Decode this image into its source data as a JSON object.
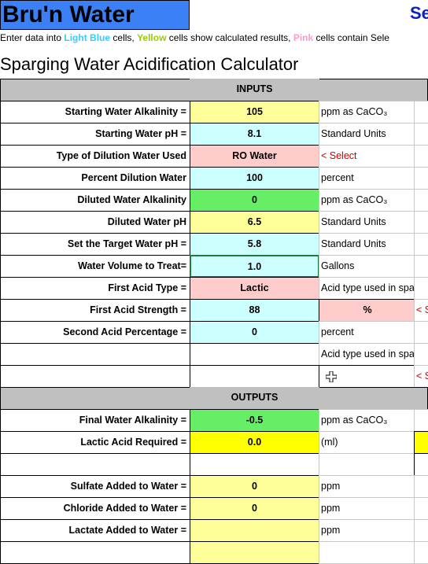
{
  "header": {
    "brand": "Bru'n Water",
    "right_text": "Se",
    "instructions": [
      {
        "text": "Enter data into "
      },
      {
        "text": "Light Blue",
        "color": "#33ccff"
      },
      {
        "text": " cells, "
      },
      {
        "text": "Yellow",
        "color": "#99cc00"
      },
      {
        "text": " cells show calculated results, "
      },
      {
        "text": "Pink",
        "color": "#ff99cc"
      },
      {
        "text": " cells contain Sele"
      }
    ],
    "title": "Sparging Water Acidification Calculator"
  },
  "sections": [
    {
      "heading": "INPUTS",
      "rows": [
        {
          "label": "Starting Water Alkalinity =",
          "value": "105",
          "fill": "#ffff99",
          "unit": "ppm as CaCO₃"
        },
        {
          "label": "Starting Water pH =",
          "value": "8.1",
          "fill": "#ccffff",
          "unit": "Standard Units"
        },
        {
          "label": "Type of Dilution Water Used",
          "value": "RO Water",
          "fill": "#ffcccc",
          "unit": "< Select",
          "unit_color": "#cc0000"
        },
        {
          "label": "Percent Dilution Water",
          "value": "100",
          "fill": "#ccffff",
          "unit": "percent"
        },
        {
          "label": "Diluted Water Alkalinity",
          "value": "0",
          "fill": "#66ee66",
          "unit": "ppm as CaCO₃"
        },
        {
          "label": "Diluted Water pH",
          "value": "6.5",
          "fill": "#ffff99",
          "unit": "Standard Units"
        },
        {
          "label": "Set the Target Water pH =",
          "value": "5.8",
          "fill": "#ccffff",
          "unit": "Standard Units"
        },
        {
          "label": "Water Volume to Treat=",
          "value": "1.0",
          "fill": "#ccffff",
          "unit": "Gallons"
        },
        {
          "label": "First Acid Type =",
          "value": "Lactic",
          "fill": "#ffcccc",
          "unit": "Acid type used in sparging"
        },
        {
          "label": "First Acid Strength =",
          "value": "88",
          "fill": "#ccffff",
          "unit": "%",
          "unit_fill": "#ffcccc",
          "note": "< Select"
        },
        {
          "label": "Second Acid Percentage =",
          "value": "0",
          "fill": "#ccffff",
          "unit": "percent"
        },
        {
          "unit": "Acid type used in sparging"
        },
        {
          "note": "< Select"
        }
      ]
    },
    {
      "heading": "OUTPUTS",
      "rows": [
        {
          "label": "Final Water Alkalinity =",
          "value": "-0.5",
          "fill": "#66ee66",
          "unit": "ppm as CaCO₃"
        },
        {
          "label": "Lactic Acid Required =",
          "value": "0.0",
          "fill": "#ffff00",
          "unit": "(ml)"
        },
        {},
        {
          "label": "Sulfate Added to Water =",
          "value": "0",
          "fill": "#ffff99",
          "unit": "ppm"
        },
        {
          "label": "Chloride Added to Water =",
          "value": "0",
          "fill": "#ffff99",
          "unit": "ppm"
        },
        {
          "label": "Lactate Added to Water =",
          "fill": "#ffff99",
          "unit": "ppm"
        },
        {
          "fill": "#ffff99"
        }
      ]
    }
  ]
}
